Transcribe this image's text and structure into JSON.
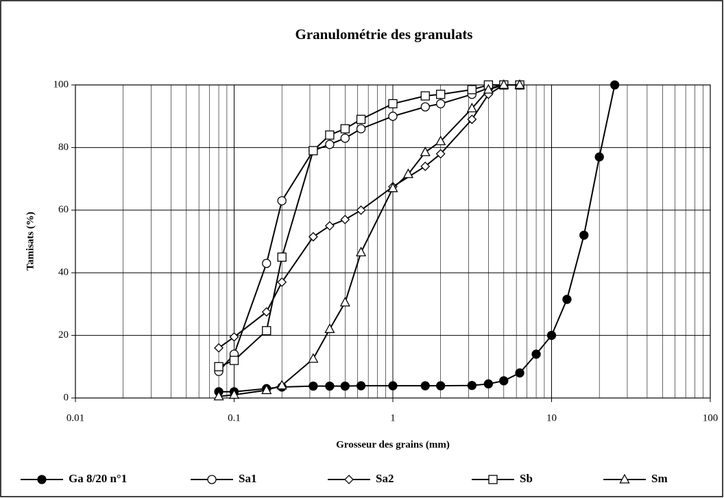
{
  "chart_data": {
    "type": "line",
    "title": "Granulométrie des granulats",
    "xlabel": "Grosseur des grains (mm)",
    "ylabel": "Tamisats (%)",
    "xscale": "log",
    "xlim": [
      0.01,
      100
    ],
    "xticks": [
      0.01,
      0.1,
      1,
      10,
      100
    ],
    "ylim": [
      0,
      100
    ],
    "yticks": [
      0,
      20,
      40,
      60,
      80,
      100
    ],
    "grid": true,
    "legend": "bottom",
    "series": [
      {
        "name": "Ga 8/20 n°1",
        "color": "#000000",
        "marker": "circle-filled",
        "x": [
          0.08,
          0.1,
          0.16,
          0.2,
          0.315,
          0.4,
          0.5,
          0.63,
          1,
          1.6,
          2,
          3.15,
          4,
          5,
          6.3,
          8,
          10,
          12.5,
          16,
          20,
          25
        ],
        "values": [
          2,
          2,
          3,
          3.5,
          3.8,
          3.8,
          3.8,
          3.9,
          3.9,
          3.9,
          3.9,
          4,
          4.5,
          5.5,
          8,
          14,
          20,
          31.5,
          52,
          77,
          100
        ]
      },
      {
        "name": "Sa1",
        "color": "#000000",
        "marker": "circle-open",
        "x": [
          0.08,
          0.1,
          0.16,
          0.2,
          0.315,
          0.4,
          0.5,
          0.63,
          1,
          1.6,
          2,
          3.15,
          4,
          5,
          6.3
        ],
        "values": [
          8.5,
          14,
          43,
          63,
          79,
          81,
          83,
          86,
          90,
          93,
          94,
          97,
          99,
          100,
          100
        ]
      },
      {
        "name": "Sa2",
        "color": "#000000",
        "marker": "diamond-open",
        "x": [
          0.08,
          0.1,
          0.16,
          0.2,
          0.315,
          0.4,
          0.5,
          0.63,
          1,
          1.6,
          2,
          3.15,
          4,
          5,
          6.3
        ],
        "values": [
          16,
          19.5,
          27.5,
          37,
          51.5,
          55,
          57,
          60,
          67.5,
          74,
          78,
          89,
          97,
          100,
          100
        ]
      },
      {
        "name": "Sb",
        "color": "#000000",
        "marker": "square-open",
        "x": [
          0.08,
          0.1,
          0.16,
          0.2,
          0.315,
          0.4,
          0.5,
          0.63,
          1,
          1.6,
          2,
          3.15,
          4,
          5,
          6.3
        ],
        "values": [
          10,
          12,
          21.5,
          45,
          79,
          84,
          86,
          89,
          94,
          96.5,
          97,
          98.5,
          100,
          100,
          100
        ]
      },
      {
        "name": "Sm",
        "color": "#000000",
        "marker": "triangle-open",
        "x": [
          0.08,
          0.1,
          0.16,
          0.2,
          0.315,
          0.4,
          0.5,
          0.63,
          1,
          1.25,
          1.6,
          2,
          3.15,
          4,
          5,
          6.3
        ],
        "values": [
          0.5,
          1,
          2.5,
          4,
          12.5,
          22,
          30.5,
          46.5,
          67,
          71.5,
          78.5,
          82,
          92.5,
          98.5,
          100,
          100
        ]
      }
    ]
  }
}
